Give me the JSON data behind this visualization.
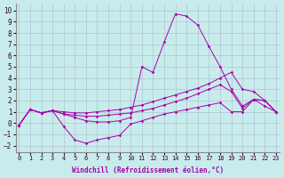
{
  "xlabel": "Windchill (Refroidissement éolien,°C)",
  "bg_color": "#c8ecec",
  "line_color": "#aa00aa",
  "grid_color": "#aabbcc",
  "xlim": [
    -0.3,
    23.3
  ],
  "ylim": [
    -2.6,
    10.6
  ],
  "xticks": [
    0,
    1,
    2,
    3,
    4,
    5,
    6,
    7,
    8,
    9,
    10,
    11,
    12,
    13,
    14,
    15,
    16,
    17,
    18,
    19,
    20,
    21,
    22,
    23
  ],
  "yticks": [
    -2,
    -1,
    0,
    1,
    2,
    3,
    4,
    5,
    6,
    7,
    8,
    9,
    10
  ],
  "series": [
    {
      "x": [
        0,
        1,
        2,
        3,
        4,
        5,
        6,
        7,
        8,
        9,
        10,
        11,
        12,
        13,
        14,
        15,
        16,
        17,
        18,
        19,
        20,
        21,
        22,
        23
      ],
      "y": [
        -0.2,
        1.2,
        0.9,
        1.1,
        0.8,
        0.5,
        0.2,
        0.1,
        0.1,
        0.2,
        0.5,
        5.0,
        4.5,
        7.2,
        9.7,
        9.5,
        8.7,
        6.8,
        5.0,
        3.0,
        1.5,
        2.1,
        1.5,
        1.0
      ]
    },
    {
      "x": [
        0,
        1,
        2,
        3,
        4,
        5,
        6,
        7,
        8,
        9,
        10,
        11,
        12,
        13,
        14,
        15,
        16,
        17,
        18,
        19,
        20,
        21,
        22,
        23
      ],
      "y": [
        -0.2,
        1.2,
        0.9,
        1.1,
        1.0,
        0.9,
        0.9,
        1.0,
        1.1,
        1.2,
        1.4,
        1.6,
        1.9,
        2.2,
        2.5,
        2.8,
        3.1,
        3.5,
        4.0,
        4.5,
        3.0,
        2.8,
        2.0,
        1.0
      ]
    },
    {
      "x": [
        0,
        1,
        2,
        3,
        4,
        5,
        6,
        7,
        8,
        9,
        10,
        11,
        12,
        13,
        14,
        15,
        16,
        17,
        18,
        19,
        20,
        21,
        22,
        23
      ],
      "y": [
        -0.2,
        1.2,
        0.9,
        1.1,
        0.8,
        0.7,
        0.6,
        0.6,
        0.7,
        0.8,
        0.9,
        1.1,
        1.3,
        1.6,
        1.9,
        2.2,
        2.6,
        3.0,
        3.4,
        2.8,
        1.3,
        2.1,
        2.0,
        1.0
      ]
    },
    {
      "x": [
        0,
        1,
        2,
        3,
        4,
        5,
        6,
        7,
        8,
        9,
        10,
        11,
        12,
        13,
        14,
        15,
        16,
        17,
        18,
        19,
        20,
        21,
        22,
        23
      ],
      "y": [
        -0.2,
        1.2,
        0.9,
        1.1,
        -0.3,
        -1.5,
        -1.8,
        -1.5,
        -1.3,
        -1.1,
        -0.1,
        0.2,
        0.5,
        0.8,
        1.0,
        1.2,
        1.4,
        1.6,
        1.8,
        1.0,
        1.0,
        2.1,
        2.0,
        1.0
      ]
    }
  ]
}
